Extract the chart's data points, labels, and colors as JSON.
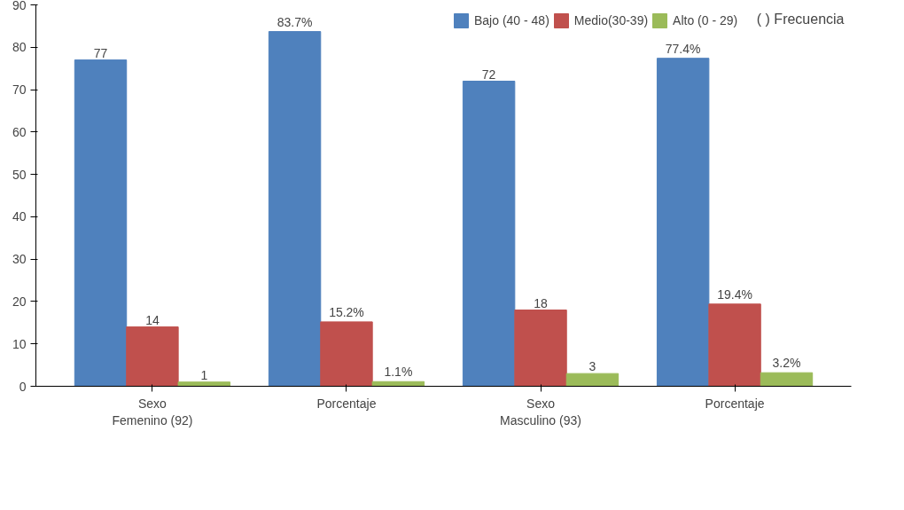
{
  "chart_data": {
    "type": "bar",
    "categories": [
      "Sexo\nFemenino (92)",
      "Porcentaje",
      "Sexo\nMasculino (93)",
      "Porcentaje"
    ],
    "series": [
      {
        "name": "Bajo (40 - 48)",
        "color": "#4f81bd",
        "values": [
          77,
          83.7,
          72,
          77.4
        ],
        "value_labels": [
          "77",
          "83.7%",
          "72",
          "77.4%"
        ]
      },
      {
        "name": "Medio(30-39)",
        "color": "#c0504d",
        "values": [
          14,
          15.2,
          18,
          19.4
        ],
        "value_labels": [
          "14",
          "15.2%",
          "18",
          "19.4%"
        ]
      },
      {
        "name": "Alto (0 - 29)",
        "color": "#9bbb59",
        "values": [
          1,
          1.1,
          3,
          3.2
        ],
        "value_labels": [
          "1",
          "1.1%",
          "3",
          "3.2%"
        ]
      }
    ],
    "annotations": [
      "( ) Frecuencia"
    ],
    "ylim": [
      0,
      90
    ],
    "yticks": [
      0,
      10,
      20,
      30,
      40,
      50,
      60,
      70,
      80,
      90
    ],
    "grid": false,
    "legend": "top"
  }
}
